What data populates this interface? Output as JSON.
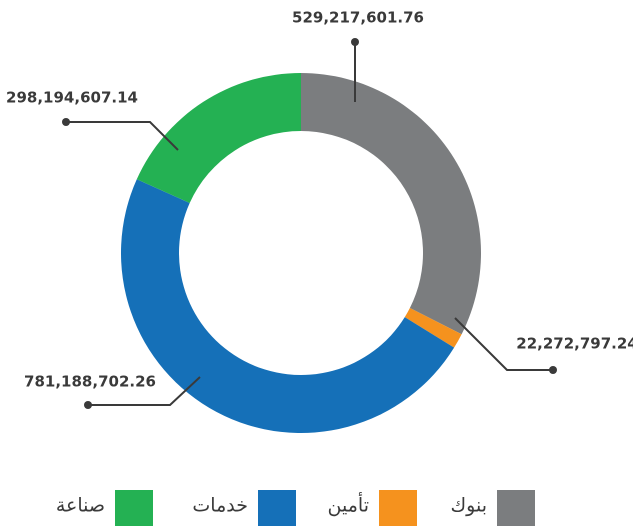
{
  "chart_data": {
    "type": "donut",
    "categories": [
      "بنوك",
      "تأمين",
      "خدمات",
      "صناعة"
    ],
    "values": [
      529217601.76,
      22272797.24,
      781188702.26,
      298194607.14
    ],
    "value_labels": [
      "529,217,601.76",
      "22,272,797.24",
      "781,188,702.26",
      "298,194,607.14"
    ],
    "colors": [
      "#7b7d7f",
      "#f5921e",
      "#1570b8",
      "#24b153"
    ]
  }
}
